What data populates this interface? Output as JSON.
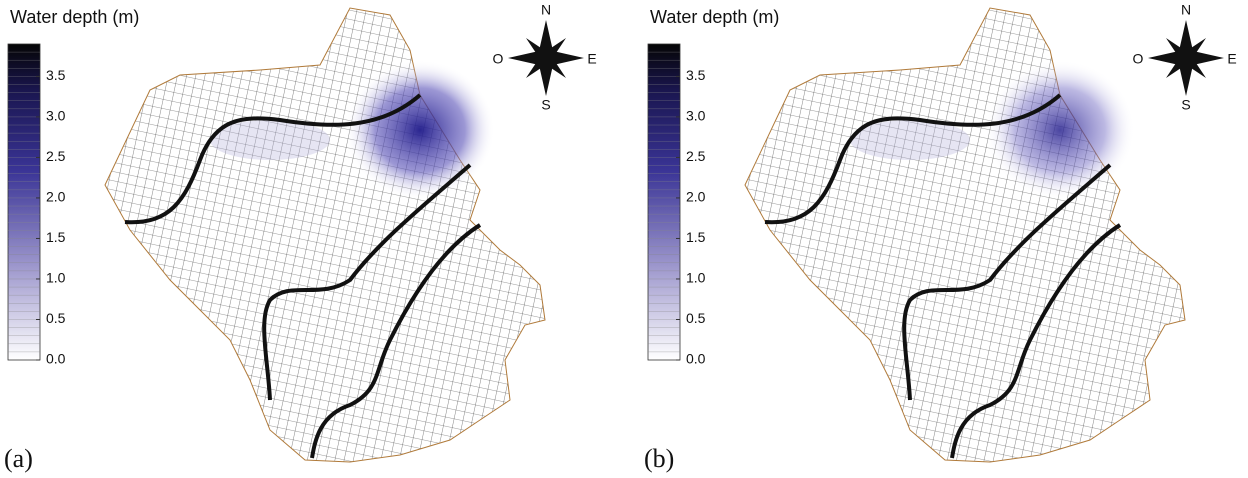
{
  "panels": [
    {
      "label": "(a)",
      "colorbar": {
        "title": "Water depth (m)",
        "lim": [
          0,
          3.9
        ],
        "ticks": [
          {
            "value": 0,
            "label": "0.0"
          },
          0.5,
          {
            "value": 1,
            "label": "1.0"
          },
          1.5,
          {
            "value": 2,
            "label": "2.0"
          },
          2.5,
          {
            "value": 3,
            "label": "3.0"
          },
          3.5
        ]
      },
      "compass": {
        "north": "N",
        "south": "S",
        "east": "E",
        "west": "O"
      }
    },
    {
      "label": "(b)",
      "colorbar": {
        "title": "Water depth (m)",
        "lim": [
          0,
          3.9
        ],
        "ticks": [
          {
            "value": 0,
            "label": "0.0"
          },
          0.5,
          {
            "value": 1,
            "label": "1.0"
          },
          1.5,
          {
            "value": 2,
            "label": "2.0"
          },
          2.5,
          {
            "value": 3,
            "label": "3.0"
          },
          3.5
        ]
      },
      "compass": {
        "north": "N",
        "south": "S",
        "east": "E",
        "west": "O"
      }
    }
  ]
}
